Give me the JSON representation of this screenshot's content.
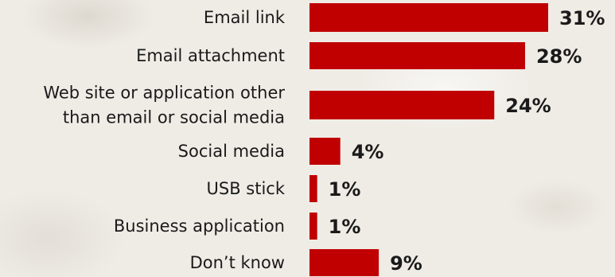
{
  "chart_data": {
    "type": "bar",
    "orientation": "horizontal",
    "categories": [
      [
        "Email link"
      ],
      [
        "Email attachment"
      ],
      [
        "Web site or application other",
        "than email or social media"
      ],
      [
        "Social media"
      ],
      [
        "USB stick"
      ],
      [
        "Business application"
      ],
      [
        "Don’t know"
      ]
    ],
    "values": [
      31,
      28,
      24,
      4,
      1,
      1,
      9
    ],
    "value_labels": [
      "31%",
      "28%",
      "24%",
      "4%",
      "1%",
      "1%",
      "9%"
    ],
    "unit": "%",
    "xlim": [
      0,
      31
    ],
    "grid": false,
    "legend": "none",
    "bar_color": "#c00000"
  }
}
